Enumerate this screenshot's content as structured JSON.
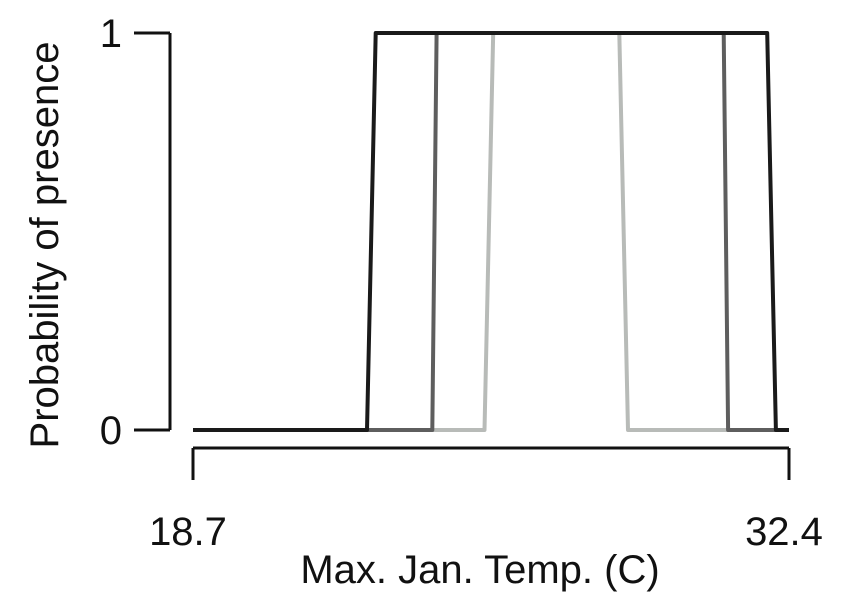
{
  "chart_data": {
    "type": "line",
    "title": "",
    "xlabel": "Max. Jan. Temp. (C)",
    "ylabel": "Probability of presence",
    "xlim": [
      18.7,
      32.4
    ],
    "ylim": [
      0,
      1
    ],
    "x_tick_labels": [
      "18.7",
      "32.4"
    ],
    "y_tick_labels": [
      "0",
      "1"
    ],
    "grid": false,
    "legend": "none",
    "series": [
      {
        "color": "#1a1a1a",
        "x": [
          18.7,
          22.7,
          22.9,
          31.9,
          32.1,
          32.4
        ],
        "y": [
          0,
          0,
          1,
          1,
          0,
          0
        ]
      },
      {
        "color": "#5e5e5e",
        "x": [
          18.7,
          24.2,
          24.3,
          30.9,
          31.0,
          32.4
        ],
        "y": [
          0,
          0,
          1,
          1,
          0,
          0
        ]
      },
      {
        "color": "#b8bbb8",
        "x": [
          18.7,
          25.4,
          25.6,
          28.5,
          28.7,
          32.4
        ],
        "y": [
          0,
          0,
          1,
          1,
          0,
          0
        ]
      }
    ]
  }
}
